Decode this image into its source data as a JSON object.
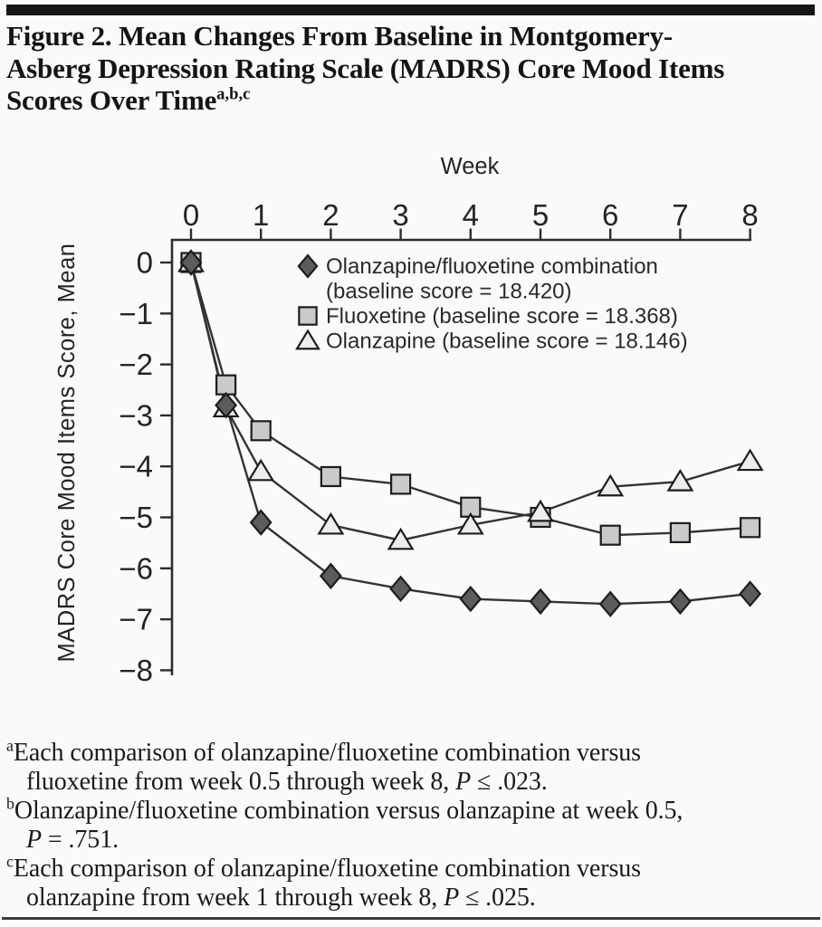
{
  "figure": {
    "title_line1": "Figure 2. Mean Changes From Baseline in Montgomery-",
    "title_line2": "Asberg Depression Rating Scale (MADRS) Core Mood Items",
    "title_line3": "Scores Over Time",
    "title_superscript": "a,b,c"
  },
  "chart_data": {
    "type": "line",
    "title": "",
    "xlabel": "Week",
    "ylabel": "MADRS Core Mood Items Score, Mean",
    "x": [
      0,
      0.5,
      1,
      2,
      3,
      4,
      5,
      6,
      7,
      8
    ],
    "x_ticks": [
      0,
      1,
      2,
      3,
      4,
      5,
      6,
      7,
      8
    ],
    "y_ticks": [
      0,
      -1,
      -2,
      -3,
      -4,
      -5,
      -6,
      -7,
      -8
    ],
    "xlim": [
      0,
      8
    ],
    "ylim": [
      -8,
      0
    ],
    "grid": false,
    "legend_position": "inside-top-center",
    "axis_color": "#2d2d2d",
    "line_color": "#333333",
    "marker_stroke": "#1d1d1d",
    "series": [
      {
        "name": "Olanzapine/fluoxetine combination",
        "marker": "diamond",
        "fill": "#5c5c5c",
        "legend_lines": [
          "Olanzapine/fluoxetine combination",
          "(baseline score = 18.420)"
        ],
        "baseline_score": 18.42,
        "values": [
          0,
          -2.8,
          -5.1,
          -6.15,
          -6.4,
          -6.6,
          -6.65,
          -6.7,
          -6.65,
          -6.5
        ]
      },
      {
        "name": "Fluoxetine",
        "marker": "square",
        "fill": "#cacaca",
        "legend_lines": [
          "Fluoxetine (baseline score = 18.368)"
        ],
        "baseline_score": 18.368,
        "values": [
          0,
          -2.4,
          -3.3,
          -4.2,
          -4.35,
          -4.8,
          -5.0,
          -5.35,
          -5.3,
          -5.2
        ]
      },
      {
        "name": "Olanzapine",
        "marker": "triangle",
        "fill": "#ededed",
        "legend_lines": [
          "Olanzapine (baseline score = 18.146)"
        ],
        "baseline_score": 18.146,
        "values": [
          0,
          -2.85,
          -4.1,
          -5.15,
          -5.45,
          -5.15,
          -4.9,
          -4.4,
          -4.3,
          -3.9
        ]
      }
    ]
  },
  "footnotes": [
    {
      "marker": "a",
      "line1": "Each comparison of olanzapine/fluoxetine combination versus",
      "line2_pre": "fluoxetine from week 0.5 through week 8, ",
      "p_var": "P",
      "line2_post": " ≤ .023."
    },
    {
      "marker": "b",
      "line1": "Olanzapine/fluoxetine combination versus olanzapine at week 0.5,",
      "line2_pre": "",
      "p_var": "P",
      "line2_post": " = .751."
    },
    {
      "marker": "c",
      "line1": "Each comparison of olanzapine/fluoxetine combination versus",
      "line2_pre": "olanzapine from week 1 through week 8, ",
      "p_var": "P",
      "line2_post": " ≤ .025."
    }
  ]
}
